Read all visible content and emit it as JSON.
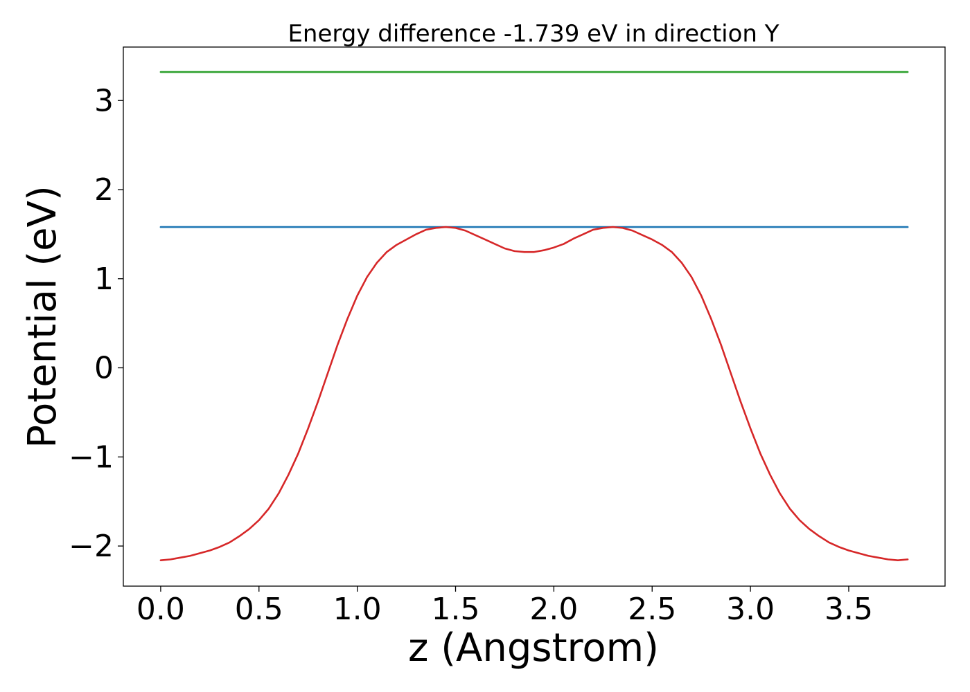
{
  "chart_data": {
    "type": "line",
    "title": "Energy difference -1.739 eV in direction Y",
    "xlabel": "z (Angstrom)",
    "ylabel": "Potential (eV)",
    "xlim": [
      -0.19,
      3.99
    ],
    "ylim": [
      -2.45,
      3.6
    ],
    "xticks": [
      0.0,
      0.5,
      1.0,
      1.5,
      2.0,
      2.5,
      3.0,
      3.5
    ],
    "xtick_labels": [
      "0.0",
      "0.5",
      "1.0",
      "1.5",
      "2.0",
      "2.5",
      "3.0",
      "3.5"
    ],
    "yticks": [
      -2,
      -1,
      0,
      1,
      2,
      3
    ],
    "ytick_labels": [
      "−2",
      "−1",
      "0",
      "1",
      "2",
      "3"
    ],
    "grid": false,
    "legend": "none",
    "series": [
      {
        "color": "#d62728",
        "x": [
          0.0,
          0.05,
          0.1,
          0.15,
          0.2,
          0.25,
          0.3,
          0.35,
          0.4,
          0.45,
          0.5,
          0.55,
          0.6,
          0.65,
          0.7,
          0.75,
          0.8,
          0.85,
          0.9,
          0.95,
          1.0,
          1.05,
          1.1,
          1.15,
          1.2,
          1.25,
          1.3,
          1.35,
          1.4,
          1.45,
          1.5,
          1.55,
          1.6,
          1.65,
          1.7,
          1.75,
          1.8,
          1.85,
          1.9,
          1.95,
          2.0,
          2.05,
          2.1,
          2.15,
          2.2,
          2.25,
          2.3,
          2.35,
          2.4,
          2.45,
          2.5,
          2.55,
          2.6,
          2.65,
          2.7,
          2.75,
          2.8,
          2.85,
          2.9,
          2.95,
          3.0,
          3.05,
          3.1,
          3.15,
          3.2,
          3.25,
          3.3,
          3.35,
          3.4,
          3.45,
          3.5,
          3.55,
          3.6,
          3.65,
          3.7,
          3.75,
          3.8
        ],
        "y": [
          -2.16,
          -2.15,
          -2.13,
          -2.11,
          -2.08,
          -2.05,
          -2.01,
          -1.96,
          -1.89,
          -1.81,
          -1.71,
          -1.58,
          -1.41,
          -1.2,
          -0.96,
          -0.68,
          -0.38,
          -0.06,
          0.26,
          0.55,
          0.81,
          1.02,
          1.18,
          1.3,
          1.38,
          1.44,
          1.5,
          1.55,
          1.57,
          1.58,
          1.57,
          1.54,
          1.49,
          1.44,
          1.39,
          1.34,
          1.31,
          1.3,
          1.3,
          1.32,
          1.35,
          1.39,
          1.45,
          1.5,
          1.55,
          1.57,
          1.58,
          1.57,
          1.54,
          1.49,
          1.44,
          1.38,
          1.3,
          1.18,
          1.02,
          0.81,
          0.55,
          0.26,
          -0.06,
          -0.38,
          -0.68,
          -0.96,
          -1.2,
          -1.41,
          -1.58,
          -1.71,
          -1.81,
          -1.89,
          -1.96,
          -2.01,
          -2.05,
          -2.08,
          -2.11,
          -2.13,
          -2.15,
          -2.16,
          -2.15
        ]
      },
      {
        "color": "#1f77b4",
        "x": [
          0.0,
          3.8
        ],
        "y": [
          1.58,
          1.58
        ]
      },
      {
        "color": "#2ca02c",
        "x": [
          0.0,
          3.8
        ],
        "y": [
          3.32,
          3.32
        ]
      }
    ]
  }
}
